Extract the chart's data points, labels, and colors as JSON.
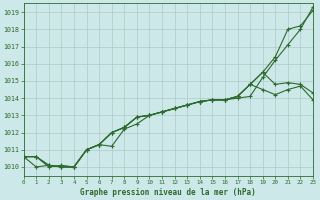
{
  "xlabel": "Graphe pression niveau de la mer (hPa)",
  "bg_color": "#cce8e8",
  "grid_color": "#b0c8c8",
  "line_color": "#2d6a2d",
  "xlim": [
    0,
    23
  ],
  "ylim": [
    1009.5,
    1019.5
  ],
  "xticks": [
    0,
    1,
    2,
    3,
    4,
    5,
    6,
    7,
    8,
    9,
    10,
    11,
    12,
    13,
    14,
    15,
    16,
    17,
    18,
    19,
    20,
    21,
    22,
    23
  ],
  "yticks": [
    1010,
    1011,
    1012,
    1013,
    1014,
    1015,
    1016,
    1017,
    1018,
    1019
  ],
  "series": [
    [
      1010.6,
      1010.6,
      1010.0,
      1010.1,
      1010.0,
      1011.0,
      1011.3,
      1011.2,
      1012.2,
      1012.5,
      1013.0,
      1013.2,
      1013.4,
      1013.6,
      1013.8,
      1013.9,
      1013.9,
      1014.0,
      1014.1,
      1015.2,
      1016.2,
      1017.1,
      1018.0,
      1019.3
    ],
    [
      1010.6,
      1010.0,
      1010.1,
      1010.0,
      1010.0,
      1011.0,
      1011.3,
      1012.0,
      1012.3,
      1012.9,
      1013.0,
      1013.2,
      1013.4,
      1013.6,
      1013.8,
      1013.9,
      1013.9,
      1014.1,
      1014.8,
      1015.5,
      1016.4,
      1018.0,
      1018.2,
      1019.1
    ],
    [
      1010.6,
      1010.6,
      1010.1,
      1010.0,
      1010.0,
      1011.0,
      1011.3,
      1012.0,
      1012.3,
      1012.9,
      1013.0,
      1013.2,
      1013.4,
      1013.6,
      1013.8,
      1013.9,
      1013.9,
      1014.1,
      1014.8,
      1015.5,
      1014.8,
      1014.9,
      1014.8,
      1014.3
    ],
    [
      1010.6,
      1010.6,
      1010.1,
      1010.0,
      1010.0,
      1011.0,
      1011.3,
      1012.0,
      1012.3,
      1012.9,
      1013.0,
      1013.2,
      1013.4,
      1013.6,
      1013.8,
      1013.9,
      1013.9,
      1014.1,
      1014.8,
      1014.5,
      1014.2,
      1014.5,
      1014.7,
      1013.9
    ]
  ]
}
